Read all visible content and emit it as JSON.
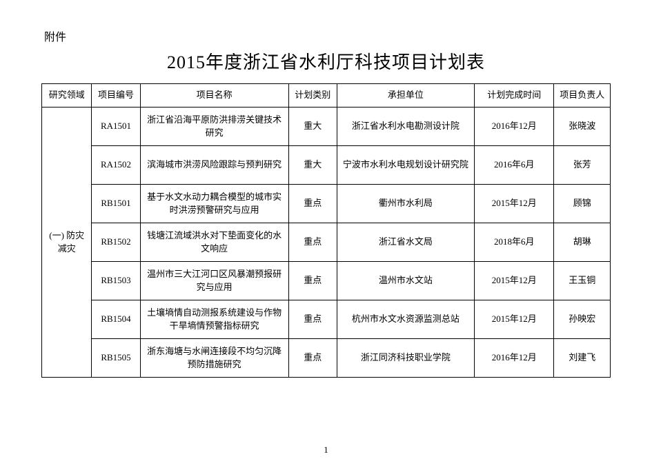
{
  "attachment_label": "附件",
  "title": "2015年度浙江省水利厅科技项目计划表",
  "page_number": "1",
  "columns": {
    "domain": "研究领域",
    "code": "项目编号",
    "name": "项目名称",
    "type": "计划类别",
    "unit": "承担单位",
    "time": "计划完成时间",
    "owner": "项目负责人"
  },
  "domain_group": "(一) 防灾减灾",
  "rows": [
    {
      "code": "RA1501",
      "name": "浙江省沿海平原防洪排涝关键技术研究",
      "type": "重大",
      "unit": "浙江省水利水电勘测设计院",
      "time": "2016年12月",
      "owner": "张晓波"
    },
    {
      "code": "RA1502",
      "name": "滨海城市洪涝风险跟踪与预判研究",
      "type": "重大",
      "unit": "宁波市水利水电规划设计研究院",
      "time": "2016年6月",
      "owner": "张芳"
    },
    {
      "code": "RB1501",
      "name": "基于水文水动力耦合模型的城市实时洪涝预警研究与应用",
      "type": "重点",
      "unit": "衢州市水利局",
      "time": "2015年12月",
      "owner": "顾锦"
    },
    {
      "code": "RB1502",
      "name": "钱塘江流域洪水对下垫面变化的水文响应",
      "type": "重点",
      "unit": "浙江省水文局",
      "time": "2018年6月",
      "owner": "胡琳"
    },
    {
      "code": "RB1503",
      "name": "温州市三大江河口区风暴潮预报研究与应用",
      "type": "重点",
      "unit": "温州市水文站",
      "time": "2015年12月",
      "owner": "王玉铜"
    },
    {
      "code": "RB1504",
      "name": "土壤墒情自动测报系统建设与作物干旱墒情预警指标研究",
      "type": "重点",
      "unit": "杭州市水文水资源监测总站",
      "time": "2015年12月",
      "owner": "孙映宏"
    },
    {
      "code": "RB1505",
      "name": "浙东海塘与水闸连接段不均匀沉降预防措施研究",
      "type": "重点",
      "unit": "浙江同济科技职业学院",
      "time": "2016年12月",
      "owner": "刘建飞"
    }
  ]
}
